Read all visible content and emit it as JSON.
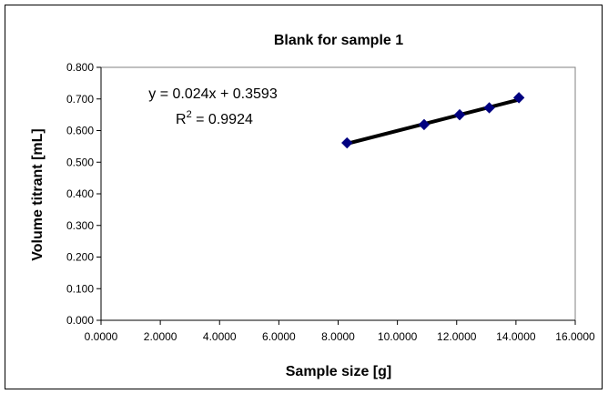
{
  "chart_data": {
    "type": "scatter",
    "title": "Blank for sample 1",
    "xlabel": "Sample size [g]",
    "ylabel": "Volume titrant [mL]",
    "xlim": [
      0,
      16
    ],
    "ylim": [
      0,
      0.8
    ],
    "x_ticks": [
      "0.0000",
      "2.0000",
      "4.0000",
      "6.0000",
      "8.0000",
      "10.0000",
      "12.0000",
      "14.0000",
      "16.0000"
    ],
    "y_ticks": [
      "0.000",
      "0.100",
      "0.200",
      "0.300",
      "0.400",
      "0.500",
      "0.600",
      "0.700",
      "0.800"
    ],
    "grid": false,
    "legend": "none",
    "series": [
      {
        "x": [
          8.3,
          10.9,
          12.1,
          13.1,
          14.1
        ],
        "y": [
          0.561,
          0.619,
          0.65,
          0.672,
          0.704
        ],
        "marker": "diamond",
        "color": "#000080"
      }
    ],
    "trendline": {
      "type": "linear",
      "slope": 0.024,
      "intercept": 0.3593,
      "x_range": [
        8.3,
        14.1
      ],
      "color": "#000000",
      "equation_text": "y = 0.024x + 0.3593",
      "r2_prefix": "R",
      "r2_sup": "2",
      "r2_value": " = 0.9924"
    }
  }
}
